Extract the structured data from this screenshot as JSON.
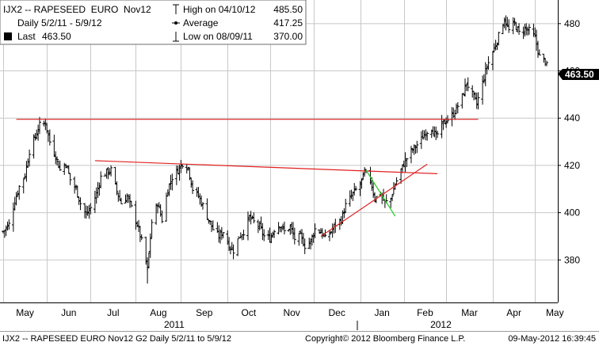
{
  "legend": {
    "ticker": "IJX2 -- RAPESEED  EURO  Nov12",
    "range": "Daily 5/2/11 - 5/9/12",
    "last_label": "Last",
    "last_value": "463.50",
    "high_label": "High on 04/10/12",
    "high_value": "485.50",
    "avg_label": "Average",
    "avg_value": "417.25",
    "low_label": "Low on 08/09/11",
    "low_value": "370.00"
  },
  "footer": {
    "left": "IJX2 -- RAPESEED  EURO  Nov12     G2  Daily  5/2/11 to 5/9/12",
    "copyright": "Copyright© 2012 Bloomberg Finance L.P.",
    "timestamp": "09-May-2012 16:39:45"
  },
  "colors": {
    "bars": "#000000",
    "red_lines": "#e02020",
    "green_line": "#22cc22",
    "last_badge": "#000000"
  },
  "chart_data": {
    "type": "ohlc",
    "title": "IJX2 -- RAPESEED EURO Nov12",
    "subtitle": "Daily 5/2/11 - 5/9/12",
    "xlabel": "",
    "ylabel": "",
    "x_range": [
      "2011-05-02",
      "2012-05-09"
    ],
    "ylim": [
      362,
      490
    ],
    "y_ticks": [
      380,
      400,
      420,
      440,
      460,
      480
    ],
    "x_month_labels": [
      "May",
      "Jun",
      "Jul",
      "Aug",
      "Sep",
      "Oct",
      "Nov",
      "Dec",
      "Jan",
      "Feb",
      "Mar",
      "Apr",
      "May"
    ],
    "year_labels": [
      "2011",
      "2012"
    ],
    "last_value": 463.5,
    "high": 485.5,
    "average": 417.25,
    "low": 370.0,
    "grid": true,
    "legend_position": "top-left",
    "close_path": [
      [
        "2011-05-02",
        392
      ],
      [
        "2011-05-06",
        395
      ],
      [
        "2011-05-10",
        405
      ],
      [
        "2011-05-13",
        411
      ],
      [
        "2011-05-17",
        416
      ],
      [
        "2011-05-20",
        426
      ],
      [
        "2011-05-24",
        432
      ],
      [
        "2011-05-27",
        437
      ],
      [
        "2011-05-31",
        438
      ],
      [
        "2011-06-03",
        430
      ],
      [
        "2011-06-07",
        424
      ],
      [
        "2011-06-10",
        418
      ],
      [
        "2011-06-14",
        421
      ],
      [
        "2011-06-17",
        414
      ],
      [
        "2011-06-21",
        410
      ],
      [
        "2011-06-24",
        404
      ],
      [
        "2011-06-28",
        399
      ],
      [
        "2011-07-01",
        402
      ],
      [
        "2011-07-05",
        408
      ],
      [
        "2011-07-08",
        415
      ],
      [
        "2011-07-12",
        417
      ],
      [
        "2011-07-15",
        418
      ],
      [
        "2011-07-19",
        409
      ],
      [
        "2011-07-22",
        404
      ],
      [
        "2011-07-26",
        407
      ],
      [
        "2011-07-29",
        402
      ],
      [
        "2011-08-02",
        395
      ],
      [
        "2011-08-05",
        388
      ],
      [
        "2011-08-09",
        376
      ],
      [
        "2011-08-12",
        396
      ],
      [
        "2011-08-16",
        404
      ],
      [
        "2011-08-19",
        397
      ],
      [
        "2011-08-23",
        410
      ],
      [
        "2011-08-26",
        415
      ],
      [
        "2011-08-30",
        418
      ],
      [
        "2011-09-02",
        421
      ],
      [
        "2011-09-06",
        419
      ],
      [
        "2011-09-09",
        410
      ],
      [
        "2011-09-13",
        407
      ],
      [
        "2011-09-16",
        403
      ],
      [
        "2011-09-20",
        397
      ],
      [
        "2011-09-23",
        393
      ],
      [
        "2011-09-27",
        390
      ],
      [
        "2011-09-30",
        392
      ],
      [
        "2011-10-04",
        386
      ],
      [
        "2011-10-07",
        384
      ],
      [
        "2011-10-11",
        390
      ],
      [
        "2011-10-14",
        392
      ],
      [
        "2011-10-18",
        398
      ],
      [
        "2011-10-21",
        396
      ],
      [
        "2011-10-25",
        394
      ],
      [
        "2011-10-28",
        390
      ],
      [
        "2011-11-01",
        389
      ],
      [
        "2011-11-04",
        393
      ],
      [
        "2011-11-08",
        395
      ],
      [
        "2011-11-11",
        392
      ],
      [
        "2011-11-15",
        394
      ],
      [
        "2011-11-18",
        389
      ],
      [
        "2011-11-22",
        390
      ],
      [
        "2011-11-25",
        386
      ],
      [
        "2011-11-29",
        388
      ],
      [
        "2011-12-02",
        393
      ],
      [
        "2011-12-06",
        392
      ],
      [
        "2011-12-09",
        389
      ],
      [
        "2011-12-13",
        392
      ],
      [
        "2011-12-16",
        395
      ],
      [
        "2011-12-20",
        397
      ],
      [
        "2011-12-23",
        403
      ],
      [
        "2011-12-28",
        408
      ],
      [
        "2012-01-02",
        412
      ],
      [
        "2012-01-05",
        417
      ],
      [
        "2012-01-09",
        414
      ],
      [
        "2012-01-12",
        406
      ],
      [
        "2012-01-16",
        408
      ],
      [
        "2012-01-19",
        404
      ],
      [
        "2012-01-23",
        406
      ],
      [
        "2012-01-26",
        412
      ],
      [
        "2012-01-30",
        418
      ],
      [
        "2012-02-02",
        422
      ],
      [
        "2012-02-06",
        426
      ],
      [
        "2012-02-09",
        428
      ],
      [
        "2012-02-13",
        431
      ],
      [
        "2012-02-16",
        434
      ],
      [
        "2012-02-20",
        436
      ],
      [
        "2012-02-23",
        432
      ],
      [
        "2012-02-27",
        437
      ],
      [
        "2012-03-01",
        439
      ],
      [
        "2012-03-05",
        441
      ],
      [
        "2012-03-08",
        444
      ],
      [
        "2012-03-12",
        449
      ],
      [
        "2012-03-15",
        455
      ],
      [
        "2012-03-19",
        450
      ],
      [
        "2012-03-22",
        446
      ],
      [
        "2012-03-26",
        455
      ],
      [
        "2012-03-29",
        462
      ],
      [
        "2012-04-02",
        468
      ],
      [
        "2012-04-05",
        473
      ],
      [
        "2012-04-10",
        482
      ],
      [
        "2012-04-13",
        477
      ],
      [
        "2012-04-17",
        480
      ],
      [
        "2012-04-20",
        476
      ],
      [
        "2012-04-24",
        478
      ],
      [
        "2012-04-27",
        477
      ],
      [
        "2012-05-01",
        474
      ],
      [
        "2012-05-04",
        466
      ],
      [
        "2012-05-09",
        463.5
      ]
    ],
    "trendlines": [
      {
        "color": "red",
        "from": [
          "2011-05-11",
          439.5
        ],
        "to": [
          "2012-03-23",
          439.5
        ]
      },
      {
        "color": "red",
        "from": [
          "2011-07-04",
          422.0
        ],
        "to": [
          "2012-02-24",
          416.5
        ]
      },
      {
        "color": "red",
        "from": [
          "2011-12-06",
          390.0
        ],
        "to": [
          "2012-02-17",
          420.5
        ]
      },
      {
        "color": "green",
        "from": [
          "2012-01-06",
          418.0
        ],
        "to": [
          "2012-01-26",
          398.5
        ]
      }
    ]
  }
}
